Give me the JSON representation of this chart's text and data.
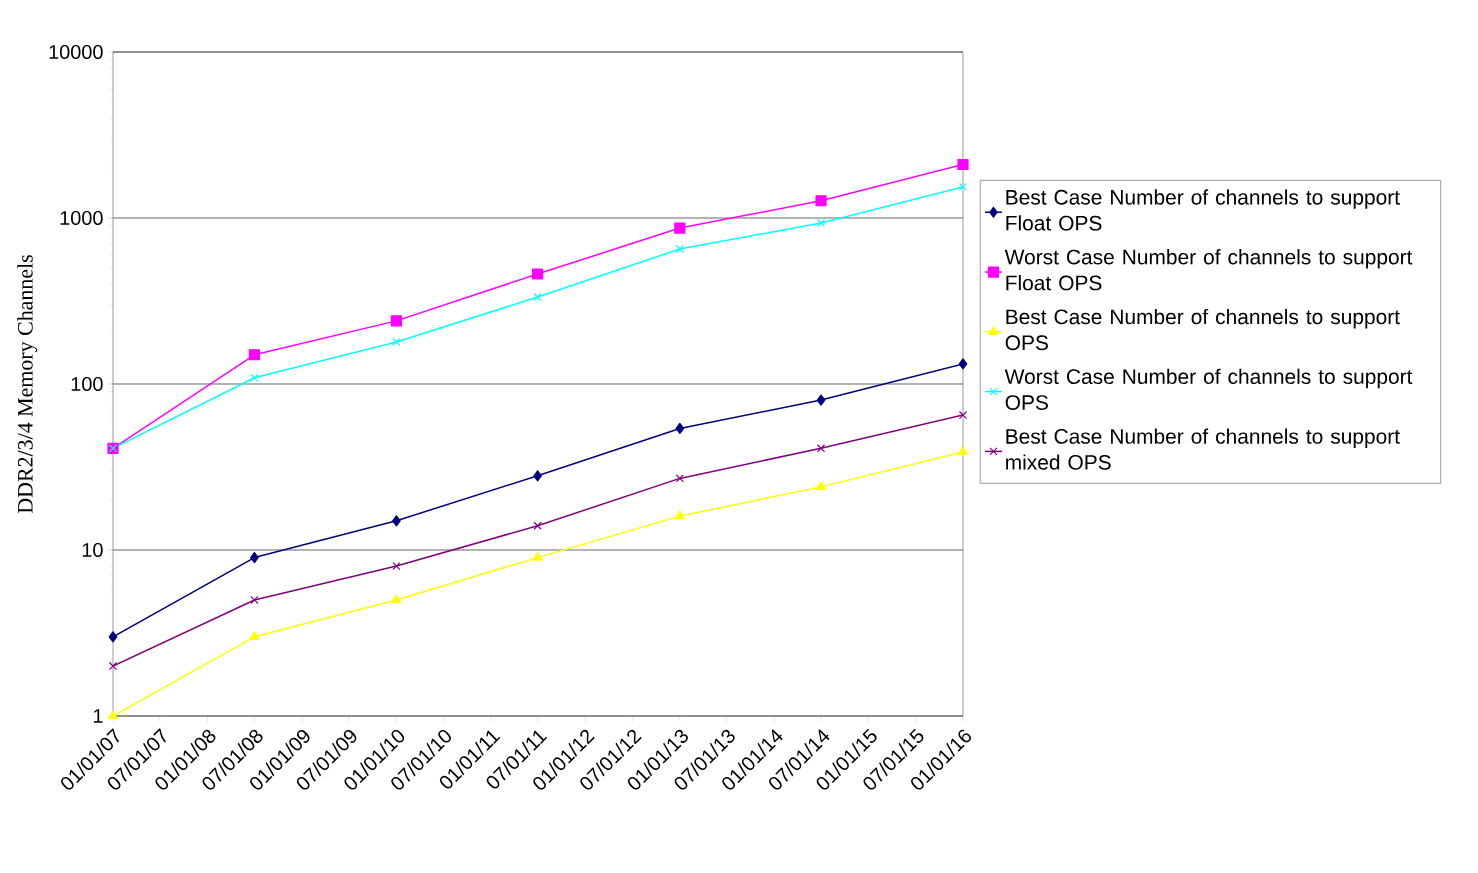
{
  "chart_data": {
    "type": "line",
    "ylabel": "DDR2/3/4 Memory Channels",
    "x": [
      "2007-01-01",
      "2008-07-01",
      "2010-01-01",
      "2011-07-01",
      "2013-01-01",
      "2014-07-01",
      "2016-01-01"
    ],
    "series": [
      {
        "name": "Best Case Number of channels to support Float OPS",
        "color": "#000080",
        "marker": "diamond",
        "values": [
          3,
          9,
          15,
          28,
          54,
          80,
          132
        ]
      },
      {
        "name": "Worst Case Number of channels to support Float OPS",
        "color": "#ff00ff",
        "marker": "square",
        "values": [
          41,
          150,
          240,
          460,
          870,
          1270,
          2100
        ]
      },
      {
        "name": "Best Case Number of channels to support OPS",
        "color": "#ffff00",
        "marker": "triangle",
        "values": [
          1,
          3,
          5,
          9,
          16,
          24,
          39
        ]
      },
      {
        "name": "Worst Case Number of channels to support OPS",
        "color": "#00ffff",
        "marker": "cross",
        "values": [
          41,
          109,
          179,
          334,
          650,
          933,
          1540
        ]
      },
      {
        "name": "Best Case Number of channels to support mixed OPS",
        "color": "#800080",
        "marker": "cross",
        "values": [
          2,
          5,
          8,
          14,
          27,
          41,
          65
        ]
      }
    ],
    "xlim": [
      "2007-01-01",
      "2016-01-01"
    ],
    "xticks": [
      {
        "value": "2007-01-01",
        "label": "01/01/07"
      },
      {
        "value": "2007-07-01",
        "label": "07/01/07"
      },
      {
        "value": "2008-01-01",
        "label": "01/01/08"
      },
      {
        "value": "2008-07-01",
        "label": "07/01/08"
      },
      {
        "value": "2009-01-01",
        "label": "01/01/09"
      },
      {
        "value": "2009-07-01",
        "label": "07/01/09"
      },
      {
        "value": "2010-01-01",
        "label": "01/01/10"
      },
      {
        "value": "2010-07-01",
        "label": "07/01/10"
      },
      {
        "value": "2011-01-01",
        "label": "01/01/11"
      },
      {
        "value": "2011-07-01",
        "label": "07/01/11"
      },
      {
        "value": "2012-01-01",
        "label": "01/01/12"
      },
      {
        "value": "2012-07-01",
        "label": "07/01/12"
      },
      {
        "value": "2013-01-01",
        "label": "01/01/13"
      },
      {
        "value": "2013-07-01",
        "label": "07/01/13"
      },
      {
        "value": "2014-01-01",
        "label": "01/01/14"
      },
      {
        "value": "2014-07-01",
        "label": "07/01/14"
      },
      {
        "value": "2015-01-01",
        "label": "01/01/15"
      },
      {
        "value": "2015-07-01",
        "label": "07/01/15"
      },
      {
        "value": "2016-01-01",
        "label": "01/01/16"
      }
    ],
    "ylim": [
      1,
      10000
    ],
    "yticks": [
      1,
      10,
      100,
      1000,
      10000
    ],
    "log": true,
    "grid": "y",
    "legend": "right",
    "line_style": "solid"
  }
}
